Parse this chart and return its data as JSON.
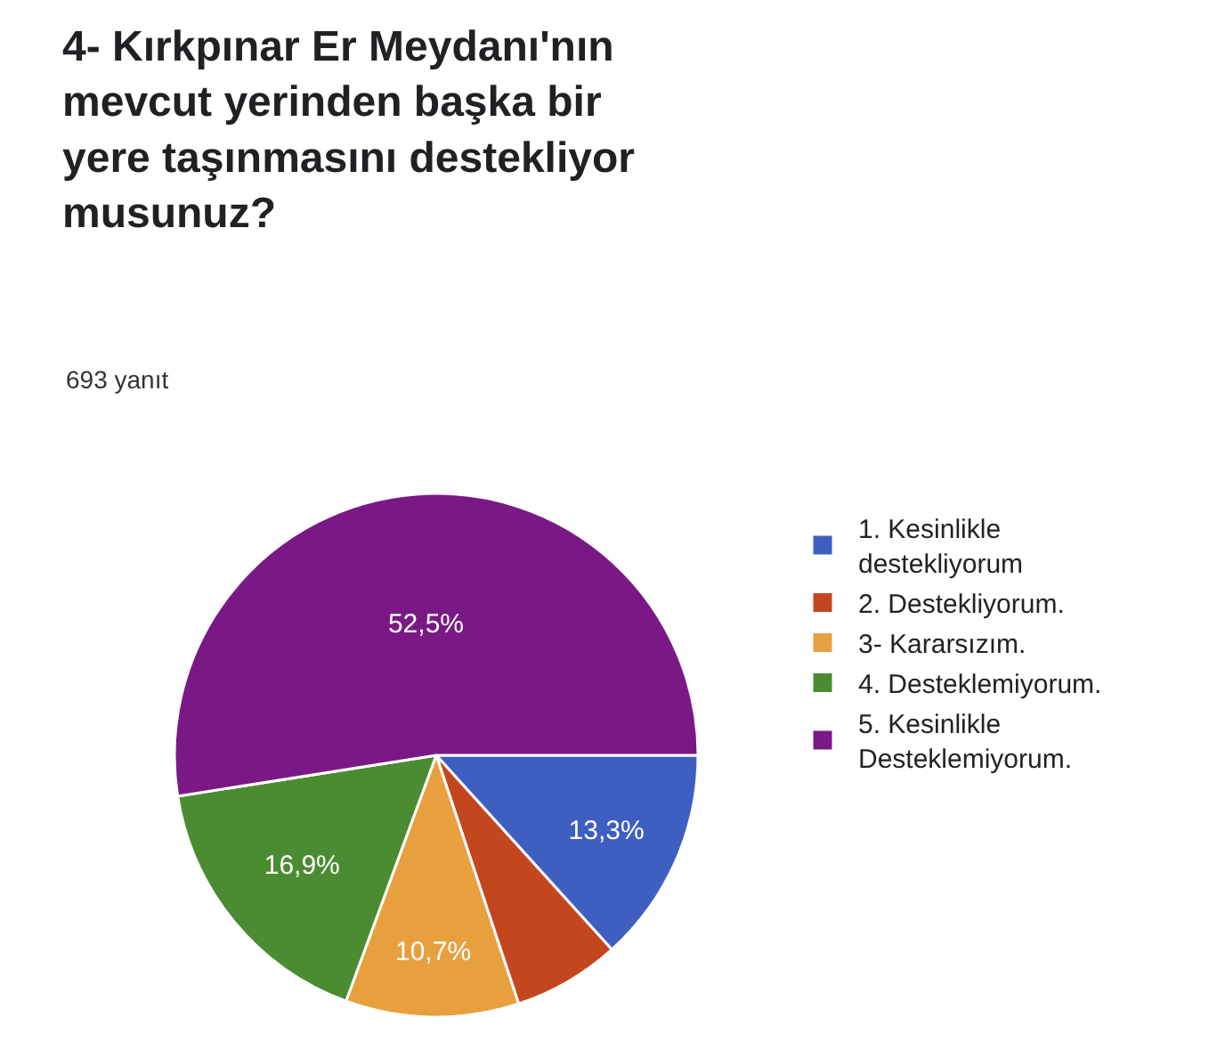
{
  "chart_data": {
    "type": "pie",
    "title": "4- Kırkpınar Er Meydanı'nın mevcut yerinden başka bir yere taşınmasını destekliyor musunuz?",
    "subtitle": "693 yanıt",
    "categories": [
      "1. Kesinlikle destekliyorum",
      "2. Destekliyorum.",
      "3- Kararsızım.",
      "4. Desteklemiyorum.",
      "5. Kesinlikle Desteklemiyorum."
    ],
    "values": [
      13.3,
      6.6,
      10.7,
      16.9,
      52.5
    ],
    "value_labels": [
      "13,3%",
      null,
      "10,7%",
      "16,9%",
      "52,5%"
    ],
    "colors": [
      "#3f5fc0",
      "#c4461f",
      "#e8a03f",
      "#4b8b32",
      "#7a1985"
    ],
    "legend": "right"
  }
}
